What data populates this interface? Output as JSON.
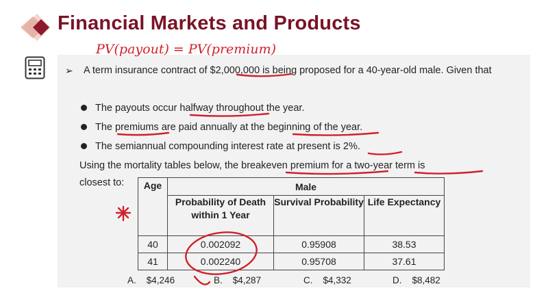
{
  "header": {
    "title": "Financial Markets and Products"
  },
  "question": {
    "intro": "A term insurance contract of $2,000,000 is being proposed for a 40-year-old male. Given that",
    "bullets": [
      "The payouts occur halfway throughout the year.",
      "The premiums are paid annually at the beginning of the year.",
      "The semiannual compounding interest rate at present is 2%."
    ],
    "prompt": "Using the mortality tables below, the breakeven premium for a two-year term is",
    "prompt_end": "closest to:"
  },
  "table": {
    "age_header": "Age",
    "group_header": "Male",
    "columns": [
      "Probability of Death within 1 Year",
      "Survival Probability",
      "Life Expectancy"
    ],
    "rows": [
      {
        "age": "40",
        "prob": "0.002092",
        "survival": "0.95908",
        "life": "38.53"
      },
      {
        "age": "41",
        "prob": "0.002240",
        "survival": "0.95708",
        "life": "37.61"
      }
    ]
  },
  "answers": [
    {
      "letter": "A.",
      "value": "$4,246"
    },
    {
      "letter": "B.",
      "value": "$4,287"
    },
    {
      "letter": "C.",
      "value": "$4,332"
    },
    {
      "letter": "D.",
      "value": "$8,482"
    }
  ],
  "annotation": {
    "handwritten_note": "PV(payout) = PV(premium)"
  },
  "colors": {
    "title": "#7a1325",
    "ink": "#d0202a",
    "panel": "#f2f2f2"
  },
  "icons": {
    "logo": "diamond-logo-icon",
    "calculator": "calculator-icon"
  }
}
